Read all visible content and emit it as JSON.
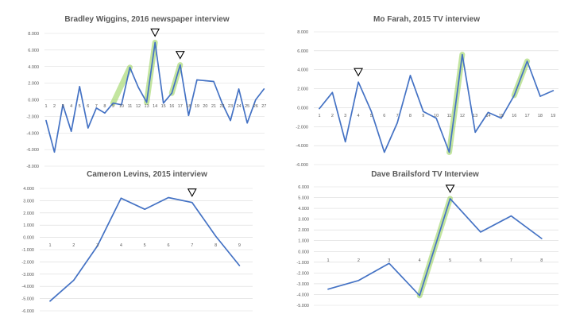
{
  "chart_data": [
    {
      "type": "line",
      "title": "Bradley Wiggins, 2016 newspaper interview",
      "categories": [
        "1",
        "2",
        "3",
        "4",
        "5",
        "6",
        "7",
        "8",
        "9",
        "10",
        "11",
        "12",
        "13",
        "14",
        "15",
        "16",
        "17",
        "18",
        "19",
        "20",
        "21",
        "22",
        "23",
        "24",
        "25",
        "26",
        "27"
      ],
      "values": [
        -2.5,
        -6.3,
        -0.6,
        -3.8,
        1.6,
        -3.4,
        -1.0,
        -1.6,
        -0.4,
        -0.6,
        3.9,
        1.5,
        -0.3,
        6.9,
        -0.4,
        0.8,
        4.2,
        -1.9,
        2.4,
        2.3,
        2.2,
        -0.4,
        -2.5,
        1.3,
        -2.8,
        0.0,
        1.3
      ],
      "ylim": [
        -8,
        8
      ],
      "yticks": [
        "-8.000",
        "-6.000",
        "-4.000",
        "-2.000",
        "0.000",
        "2.000",
        "4.000",
        "6.000",
        "8.000"
      ],
      "highlight_segments": [
        [
          9,
          11
        ],
        [
          13,
          14
        ],
        [
          16,
          17
        ]
      ],
      "markers": [
        14,
        17
      ]
    },
    {
      "type": "line",
      "title": "Mo Farah, 2015 TV interview",
      "categories": [
        "1",
        "2",
        "3",
        "4",
        "5",
        "6",
        "7",
        "8",
        "9",
        "10",
        "11",
        "12",
        "13",
        "14",
        "15",
        "16",
        "17",
        "18",
        "19"
      ],
      "values": [
        -0.1,
        1.6,
        -3.6,
        2.7,
        -0.4,
        -4.7,
        -1.6,
        3.4,
        -0.4,
        -1.1,
        -4.7,
        5.6,
        -2.6,
        -0.5,
        -1.1,
        1.3,
        4.9,
        1.2,
        1.8
      ],
      "ylim": [
        -6,
        8
      ],
      "yticks": [
        "-6.000",
        "-4.000",
        "-2.000",
        "0.000",
        "2.000",
        "4.000",
        "6.000",
        "8.000"
      ],
      "highlight_segments": [
        [
          11,
          12
        ],
        [
          16,
          17
        ]
      ],
      "markers": [
        4
      ]
    },
    {
      "type": "line",
      "title": "Cameron Levins, 2015 interview",
      "categories": [
        "1",
        "2",
        "3",
        "4",
        "5",
        "6",
        "7",
        "8",
        "9"
      ],
      "values": [
        -5.2,
        -3.5,
        -0.7,
        3.2,
        2.3,
        3.25,
        2.85,
        0.1,
        -2.3
      ],
      "ylim": [
        -6,
        4
      ],
      "yticks": [
        "-6.000",
        "-5.000",
        "-4.000",
        "-3.000",
        "-2.000",
        "-1.000",
        "0.000",
        "1.000",
        "2.000",
        "3.000",
        "4.000"
      ],
      "highlight_segments": [],
      "markers": [
        7
      ]
    },
    {
      "type": "line",
      "title": "Dave Brailsford TV Interview",
      "categories": [
        "1",
        "2",
        "3",
        "4",
        "5",
        "6",
        "7",
        "8"
      ],
      "values": [
        -3.5,
        -2.7,
        -1.1,
        -4.1,
        4.9,
        1.8,
        3.3,
        1.2
      ],
      "ylim": [
        -5,
        6
      ],
      "yticks": [
        "-5.000",
        "-4.000",
        "-3.000",
        "-2.000",
        "-1.000",
        "0.000",
        "1.000",
        "2.000",
        "3.000",
        "4.000",
        "5.000",
        "6.000"
      ],
      "highlight_segments": [
        [
          4,
          5
        ]
      ],
      "markers": [
        5
      ]
    }
  ]
}
